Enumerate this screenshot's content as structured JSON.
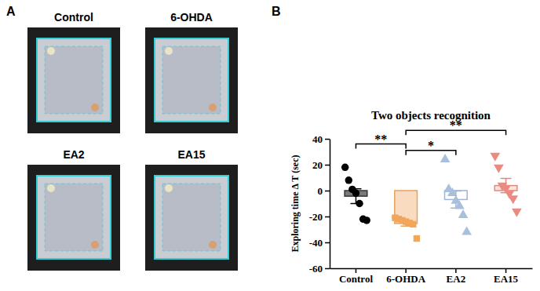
{
  "figure": {
    "panel_labels": [
      "A",
      "B"
    ],
    "image_titles": [
      "Control",
      "6-OHDA",
      "EA2",
      "EA15"
    ]
  },
  "chart_data": {
    "type": "bar",
    "title": "Two objects recognition",
    "y_label": "Exploring time Δ T (sec)",
    "categories": [
      "Control",
      "6-OHDA",
      "EA2",
      "EA15"
    ],
    "values": [
      -4.3,
      -25.4,
      -6.9,
      3.9
    ],
    "error": [
      5.7,
      2.0,
      6.6,
      5.5
    ],
    "points": [
      [
        18,
        8,
        1,
        -2,
        -10,
        -22,
        -23
      ],
      [
        -21,
        -22,
        -23,
        -24,
        -25,
        -26,
        -37
      ],
      [
        24,
        1,
        -2,
        -8,
        -12,
        -19,
        -32
      ],
      [
        27,
        18,
        4,
        2,
        -2,
        -6,
        -16
      ]
    ],
    "colors": [
      "#7a7a7a",
      "#f9dcc0",
      "#ffffff",
      "#fbe3df"
    ],
    "ylim": [
      -60,
      40
    ],
    "yticks": [
      -60,
      -40,
      -20,
      0,
      20,
      40
    ],
    "annotations": [
      {
        "text": "**",
        "from": "Control",
        "to": "6-OHDA",
        "y": 36
      },
      {
        "text": "*",
        "from": "6-OHDA",
        "to": "EA2",
        "y": 31
      },
      {
        "text": "**",
        "from": "6-OHDA",
        "to": "EA15",
        "y": 46.5
      }
    ]
  }
}
